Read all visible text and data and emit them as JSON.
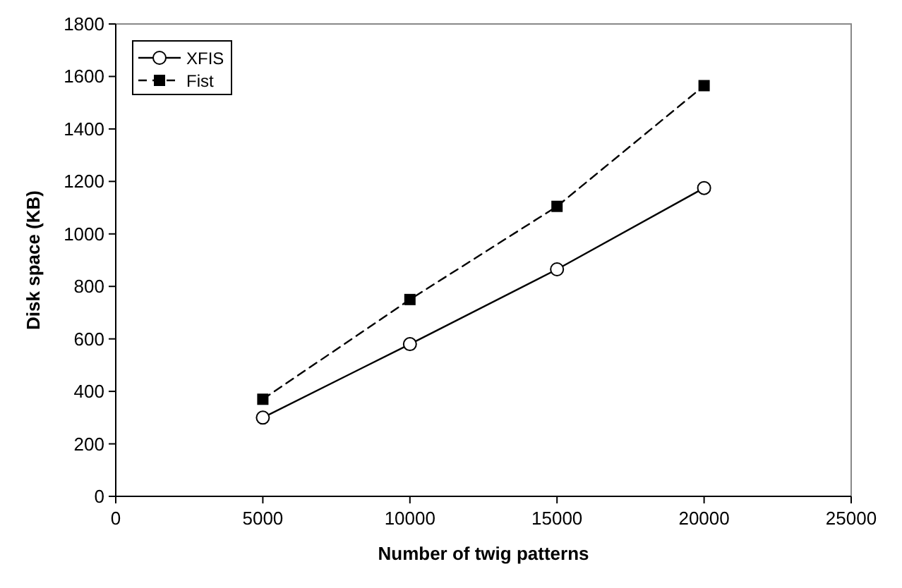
{
  "chart_data": {
    "type": "line",
    "xlabel": "Number of twig patterns",
    "ylabel": "Disk space (KB)",
    "x": [
      5000,
      10000,
      15000,
      20000
    ],
    "series": [
      {
        "name": "XFIS",
        "color": "#000000",
        "values": [
          300,
          580,
          865,
          1175
        ],
        "marker": "circle",
        "line_style": "solid"
      },
      {
        "name": "Fist",
        "color": "#000000",
        "values": [
          370,
          750,
          1105,
          1565
        ],
        "marker": "square",
        "line_style": "dashed"
      }
    ],
    "xlim": [
      0,
      25000
    ],
    "xticks": [
      0,
      5000,
      10000,
      15000,
      20000,
      25000
    ],
    "ylim": [
      0,
      1800
    ],
    "yticks": [
      0,
      200,
      400,
      600,
      800,
      1000,
      1200,
      1400,
      1600,
      1800
    ],
    "grid": false,
    "legend": "top left"
  }
}
